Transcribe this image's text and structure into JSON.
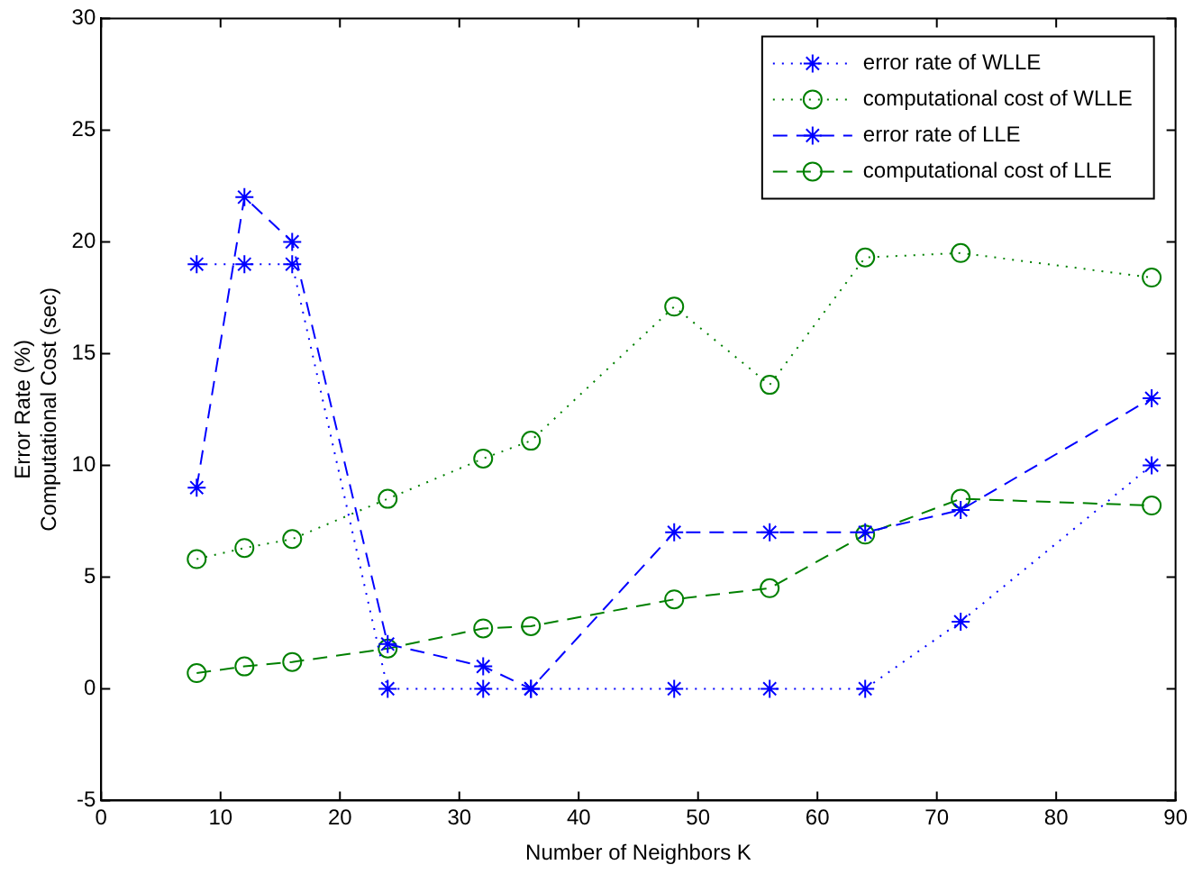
{
  "chart_data": {
    "type": "line",
    "xlabel": "Number of Neighbors K",
    "ylabel": "Error Rate (%)\nComputational Cost (sec)",
    "x": [
      8,
      12,
      16,
      24,
      32,
      36,
      48,
      56,
      64,
      72,
      88
    ],
    "series": [
      {
        "name": "error rate of WLLE",
        "color": "#0000ff",
        "marker": "cross",
        "line_style": "dotted",
        "values": [
          19,
          19,
          19,
          0,
          0,
          0,
          0,
          0,
          0,
          3,
          10
        ]
      },
      {
        "name": "computational cost of WLLE",
        "color": "#008000",
        "marker": "circle",
        "line_style": "dotted",
        "values": [
          5.8,
          6.3,
          6.7,
          8.5,
          10.3,
          11.1,
          17.1,
          13.6,
          19.3,
          19.5,
          18.4
        ]
      },
      {
        "name": "error rate of LLE",
        "color": "#0000ff",
        "marker": "cross",
        "line_style": "dashed",
        "values": [
          9,
          22,
          20,
          2,
          1,
          0,
          7,
          7,
          7,
          8,
          13
        ]
      },
      {
        "name": "computational cost of LLE",
        "color": "#008000",
        "marker": "circle",
        "line_style": "dashed",
        "values": [
          0.7,
          1.0,
          1.2,
          1.8,
          2.7,
          2.8,
          4.0,
          4.5,
          6.9,
          8.5,
          8.2
        ]
      }
    ],
    "xlim": [
      0,
      90
    ],
    "xticks": [
      0,
      10,
      20,
      30,
      40,
      50,
      60,
      70,
      80,
      90
    ],
    "ylim": [
      -5,
      30
    ],
    "yticks": [
      -5,
      0,
      5,
      10,
      15,
      20,
      25,
      30
    ],
    "grid": false,
    "legend": "top right"
  }
}
